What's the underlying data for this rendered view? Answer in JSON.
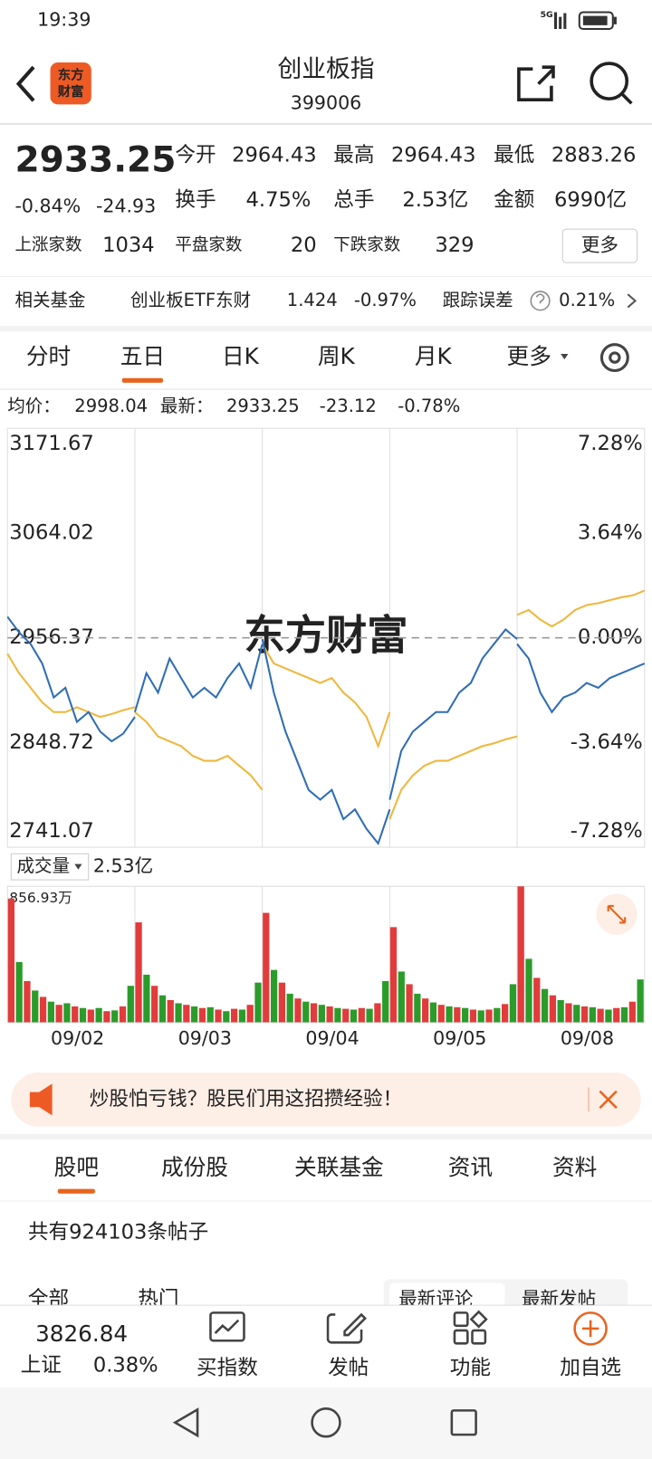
{
  "status_bar": {
    "time": "19:39",
    "network": "5G"
  },
  "header": {
    "logo": [
      "东方",
      "财富"
    ],
    "title": "创业板指",
    "code": "399006"
  },
  "quote": {
    "price": "2933.25",
    "change_percent": "-0.84%",
    "change": "-24.93",
    "stats": [
      {
        "label": "今开",
        "value": "2964.43"
      },
      {
        "label": "最高",
        "value": "2964.43"
      },
      {
        "label": "最低",
        "value": "2883.26"
      },
      {
        "label": "换手",
        "value": "4.75%"
      },
      {
        "label": "总手",
        "value": "2.53亿"
      },
      {
        "label": "金额",
        "value": "6990亿"
      }
    ],
    "breadth": [
      {
        "label": "上涨家数",
        "value": "1034"
      },
      {
        "label": "平盘家数",
        "value": "20"
      },
      {
        "label": "下跌家数",
        "value": "329"
      }
    ],
    "more": "更多"
  },
  "fund": {
    "label": "相关基金",
    "name": "创业板ETF东财",
    "price": "1.424",
    "change": "-0.97%",
    "tracking_label": "跟踪误差",
    "tracking": "0.21%"
  },
  "chart_tabs": {
    "items": [
      "分时",
      "五日",
      "日K",
      "周K",
      "月K",
      "更多"
    ],
    "active": 1
  },
  "chart_info": {
    "average_label": "均价：",
    "average": "2998.04",
    "latest_label": "最新：",
    "latest": "2933.25",
    "change": "-23.12",
    "change_percent": "-0.78%"
  },
  "price_chart": {
    "type": "line",
    "watermark": "东方财富",
    "ylim": [
      2741.07,
      3171.67
    ],
    "yticks": [
      3171.67,
      3064.02,
      2956.37,
      2848.72,
      2741.07
    ],
    "y2lim": [
      -7.28,
      7.28
    ],
    "y2ticks": [
      {
        "value": 7.28,
        "label": "7.28%"
      },
      {
        "value": 3.64,
        "label": "3.64%"
      },
      {
        "value": 0,
        "label": "0.00%"
      },
      {
        "value": -3.64,
        "label": "-3.64%"
      },
      {
        "value": -7.28,
        "label": "-7.28%"
      }
    ],
    "tick_colors": [
      "#e23b3b",
      "#e23b3b",
      "#999999",
      "#2a9c2a",
      "#2a9c2a"
    ],
    "price_color": "#2f6db5",
    "average_color": "#f0b73c",
    "days": [
      {
        "price": [
          2978,
          2962,
          2950,
          2930,
          2895,
          2905,
          2870,
          2880,
          2860,
          2850,
          2858,
          2875
        ],
        "average": [
          2940,
          2920,
          2905,
          2890,
          2880,
          2880,
          2885,
          2880,
          2875,
          2878,
          2882,
          2885
        ]
      },
      {
        "price": [
          2880,
          2920,
          2900,
          2935,
          2915,
          2895,
          2905,
          2895,
          2915,
          2930,
          2905,
          2950
        ],
        "average": [
          2880,
          2870,
          2855,
          2850,
          2845,
          2835,
          2830,
          2830,
          2835,
          2825,
          2815,
          2800
        ]
      },
      {
        "price": [
          2955,
          2900,
          2860,
          2830,
          2800,
          2790,
          2800,
          2770,
          2780,
          2760,
          2745,
          2780
        ],
        "average": [
          2950,
          2930,
          2925,
          2920,
          2915,
          2910,
          2915,
          2900,
          2890,
          2875,
          2845,
          2880
        ]
      },
      {
        "price": [
          2790,
          2840,
          2860,
          2870,
          2880,
          2880,
          2900,
          2910,
          2935,
          2950,
          2965,
          2955
        ],
        "average": [
          2770,
          2800,
          2815,
          2825,
          2830,
          2830,
          2835,
          2840,
          2845,
          2848,
          2852,
          2855
        ]
      },
      {
        "price": [
          2950,
          2935,
          2900,
          2880,
          2895,
          2900,
          2910,
          2905,
          2915,
          2920,
          2925,
          2930
        ],
        "average": [
          2980,
          2985,
          2975,
          2968,
          2975,
          2985,
          2990,
          2992,
          2995,
          2998,
          3000,
          3005
        ]
      }
    ]
  },
  "volume_chart": {
    "type": "bar",
    "label": "成交量",
    "total": "2.53亿",
    "ylim": [
      0,
      856.93
    ],
    "yticks": [
      {
        "value": 856.93,
        "label": "856.93万"
      }
    ],
    "colors": [
      "#e23b3b",
      "#2a9c2a"
    ],
    "days": [
      {
        "label": "09/02",
        "values": [
          780,
          380,
          260,
          200,
          160,
          130,
          110,
          120,
          100,
          90,
          80,
          90,
          70,
          75,
          100,
          230
        ]
      },
      {
        "label": "09/03",
        "values": [
          630,
          300,
          230,
          170,
          140,
          120,
          110,
          100,
          90,
          95,
          80,
          70,
          85,
          80,
          110,
          250
        ]
      },
      {
        "label": "09/04",
        "values": [
          690,
          330,
          250,
          180,
          150,
          130,
          120,
          110,
          100,
          90,
          85,
          80,
          90,
          85,
          120,
          260
        ]
      },
      {
        "label": "09/05",
        "values": [
          600,
          320,
          240,
          180,
          150,
          125,
          110,
          100,
          95,
          90,
          80,
          75,
          80,
          90,
          115,
          240
        ]
      },
      {
        "label": "09/08",
        "values": [
          856.93,
          400,
          280,
          210,
          170,
          140,
          120,
          110,
          100,
          95,
          85,
          80,
          90,
          95,
          130,
          270
        ]
      }
    ]
  },
  "banner": {
    "text": "炒股怕亏钱？股民们用这招攒经验！"
  },
  "section_tabs": {
    "items": [
      "股吧",
      "成份股",
      "关联基金",
      "资讯",
      "资料"
    ],
    "active": 0
  },
  "posts": {
    "count_text": "共有924103条帖子",
    "filters": [
      "全部",
      "热门"
    ],
    "sort": [
      "最新评论",
      "最新发帖"
    ]
  },
  "bottom_bar": {
    "index": {
      "value": "3826.84",
      "name": "上证",
      "change": "0.38%"
    },
    "actions": [
      "买指数",
      "发帖",
      "功能",
      "加自选"
    ]
  }
}
